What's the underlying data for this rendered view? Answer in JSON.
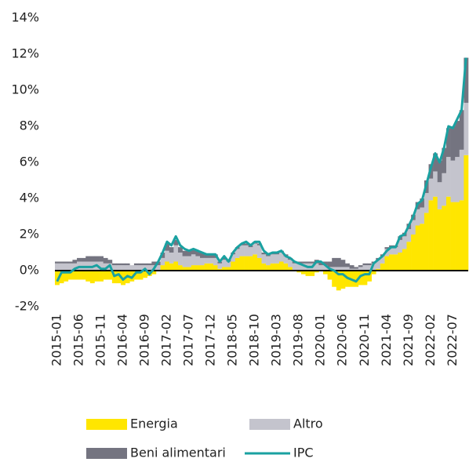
{
  "chart_data": {
    "type": "bar",
    "categories": [
      "2015-01",
      null,
      null,
      null,
      null,
      "2015-06",
      null,
      null,
      null,
      null,
      "2015-11",
      null,
      null,
      null,
      null,
      "2016-04",
      null,
      null,
      null,
      null,
      "2016-09",
      null,
      null,
      null,
      null,
      "2017-02",
      null,
      null,
      null,
      null,
      "2017-07",
      null,
      null,
      null,
      null,
      "2017-12",
      null,
      null,
      null,
      null,
      "2018-05",
      null,
      null,
      null,
      null,
      "2018-10",
      null,
      null,
      null,
      null,
      "2019-03",
      null,
      null,
      null,
      null,
      "2019-08",
      null,
      null,
      null,
      null,
      "2020-01",
      null,
      null,
      null,
      null,
      "2020-06",
      null,
      null,
      null,
      null,
      "2020-11",
      null,
      null,
      null,
      null,
      "2021-04",
      null,
      null,
      null,
      null,
      "2021-09",
      null,
      null,
      null,
      null,
      "2022-02",
      null,
      null,
      null,
      null,
      "2022-07",
      null,
      null,
      null
    ],
    "series": [
      {
        "name": "Energia",
        "color": "#ffe600",
        "values": [
          -0.8,
          -0.7,
          -0.6,
          -0.5,
          -0.5,
          -0.5,
          -0.5,
          -0.6,
          -0.7,
          -0.6,
          -0.6,
          -0.5,
          -0.5,
          -0.7,
          -0.7,
          -0.8,
          -0.7,
          -0.6,
          -0.5,
          -0.5,
          -0.4,
          -0.3,
          -0.2,
          0.0,
          0.3,
          0.5,
          0.4,
          0.5,
          0.3,
          0.2,
          0.2,
          0.3,
          0.3,
          0.3,
          0.4,
          0.4,
          0.3,
          0.1,
          0.2,
          0.2,
          0.5,
          0.7,
          0.8,
          0.8,
          0.8,
          0.9,
          0.7,
          0.4,
          0.3,
          0.4,
          0.4,
          0.5,
          0.4,
          0.2,
          0.0,
          -0.1,
          -0.2,
          -0.3,
          -0.3,
          -0.1,
          0.0,
          -0.2,
          -0.5,
          -0.9,
          -1.1,
          -1.0,
          -0.9,
          -0.9,
          -0.9,
          -0.8,
          -0.8,
          -0.6,
          -0.2,
          0.1,
          0.4,
          0.8,
          0.9,
          0.9,
          1.0,
          1.2,
          1.6,
          2.0,
          2.5,
          2.6,
          3.2,
          3.9,
          4.1,
          3.4,
          3.6,
          4.1,
          3.8,
          3.8,
          3.9,
          6.4
        ]
      },
      {
        "name": "Altro",
        "color": "#c4c4cd",
        "values": [
          0.4,
          0.4,
          0.4,
          0.4,
          0.4,
          0.5,
          0.5,
          0.5,
          0.5,
          0.5,
          0.5,
          0.4,
          0.4,
          0.3,
          0.3,
          0.3,
          0.3,
          0.3,
          0.3,
          0.3,
          0.3,
          0.3,
          0.3,
          0.3,
          0.4,
          0.6,
          0.6,
          0.9,
          0.7,
          0.6,
          0.6,
          0.6,
          0.5,
          0.4,
          0.3,
          0.3,
          0.4,
          0.3,
          0.4,
          0.3,
          0.4,
          0.5,
          0.6,
          0.6,
          0.5,
          0.6,
          0.7,
          0.5,
          0.5,
          0.5,
          0.5,
          0.5,
          0.4,
          0.4,
          0.4,
          0.4,
          0.4,
          0.4,
          0.4,
          0.4,
          0.3,
          0.3,
          0.2,
          0.2,
          0.2,
          0.2,
          0.2,
          0.1,
          0.1,
          0.2,
          0.3,
          0.3,
          0.4,
          0.5,
          0.4,
          0.4,
          0.4,
          0.4,
          0.7,
          0.7,
          0.7,
          0.8,
          0.9,
          0.9,
          1.1,
          1.2,
          1.4,
          1.5,
          1.8,
          2.2,
          2.3,
          2.5,
          2.8,
          2.9
        ]
      },
      {
        "name": "Beni alimentari",
        "color": "#747480",
        "values": [
          0.1,
          0.1,
          0.1,
          0.1,
          0.2,
          0.2,
          0.2,
          0.3,
          0.3,
          0.3,
          0.3,
          0.3,
          0.2,
          0.1,
          0.1,
          0.1,
          0.1,
          0.0,
          0.1,
          0.1,
          0.1,
          0.1,
          0.2,
          0.2,
          0.3,
          0.4,
          0.3,
          0.3,
          0.3,
          0.3,
          0.3,
          0.3,
          0.3,
          0.3,
          0.2,
          0.2,
          0.2,
          0.1,
          0.1,
          0.1,
          0.1,
          0.1,
          0.1,
          0.1,
          0.1,
          0.1,
          0.1,
          0.1,
          0.1,
          0.1,
          0.1,
          0.1,
          0.1,
          0.1,
          0.1,
          0.1,
          0.1,
          0.1,
          0.1,
          0.2,
          0.2,
          0.2,
          0.3,
          0.5,
          0.5,
          0.4,
          0.2,
          0.2,
          0.1,
          0.1,
          0.1,
          0.1,
          0.1,
          0.1,
          0.1,
          0.1,
          0.1,
          0.1,
          0.2,
          0.2,
          0.3,
          0.3,
          0.4,
          0.5,
          0.7,
          0.8,
          1.0,
          1.2,
          1.4,
          1.6,
          1.9,
          2.0,
          2.2,
          2.5
        ]
      },
      {
        "name": "IPC",
        "color": "#1aa1a1",
        "type": "line",
        "values": [
          -0.6,
          -0.1,
          -0.1,
          -0.1,
          0.1,
          0.2,
          0.2,
          0.2,
          0.2,
          0.3,
          0.1,
          0.1,
          0.3,
          -0.3,
          -0.2,
          -0.5,
          -0.3,
          -0.4,
          -0.1,
          -0.1,
          0.1,
          -0.2,
          0.1,
          0.5,
          1.0,
          1.6,
          1.4,
          1.9,
          1.4,
          1.2,
          1.1,
          1.2,
          1.1,
          1.0,
          0.9,
          0.9,
          0.9,
          0.5,
          0.8,
          0.5,
          1.0,
          1.3,
          1.5,
          1.6,
          1.4,
          1.6,
          1.6,
          1.1,
          0.9,
          1.0,
          1.0,
          1.1,
          0.8,
          0.7,
          0.5,
          0.4,
          0.3,
          0.2,
          0.2,
          0.5,
          0.5,
          0.3,
          0.1,
          0.0,
          -0.2,
          -0.2,
          -0.4,
          -0.5,
          -0.6,
          -0.3,
          -0.2,
          -0.2,
          0.4,
          0.6,
          0.8,
          1.1,
          1.3,
          1.3,
          1.9,
          2.0,
          2.5,
          3.0,
          3.7,
          3.9,
          4.8,
          5.7,
          6.5,
          6.0,
          6.8,
          8.0,
          7.9,
          8.4,
          8.9,
          11.8
        ]
      }
    ],
    "stacked": true,
    "ylim": [
      -2,
      14
    ],
    "yticks": [
      {
        "value": -2,
        "label": "-2%"
      },
      {
        "value": 0,
        "label": "0%"
      },
      {
        "value": 2,
        "label": "2%"
      },
      {
        "value": 4,
        "label": "4%"
      },
      {
        "value": 6,
        "label": "6%"
      },
      {
        "value": 8,
        "label": "8%"
      },
      {
        "value": 10,
        "label": "10%"
      },
      {
        "value": 12,
        "label": "12%"
      },
      {
        "value": 14,
        "label": "14%"
      }
    ],
    "grid": false,
    "legend": "bottom"
  }
}
